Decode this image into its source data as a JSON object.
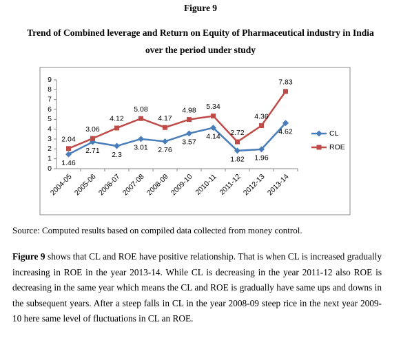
{
  "figure_label": "Figure 9",
  "title_lines": [
    "Trend of Combined leverage and Return on Equity of Pharmaceutical industry in India",
    "over the period under study"
  ],
  "chart_data": {
    "type": "line",
    "categories": [
      "2004-05",
      "2005-06",
      "2006-07",
      "2007-08",
      "2008-09",
      "2009-10",
      "2010-11",
      "2011-12",
      "2012-13",
      "2013-14"
    ],
    "series": [
      {
        "name": "CL",
        "color": "#4a7ebb",
        "marker": "diamond",
        "values": [
          1.46,
          2.71,
          2.3,
          3.01,
          2.76,
          3.57,
          4.14,
          1.82,
          1.96,
          4.62
        ]
      },
      {
        "name": "ROE",
        "color": "#be4b48",
        "marker": "square",
        "values": [
          2.04,
          3.06,
          4.12,
          5.08,
          4.17,
          4.98,
          5.34,
          2.72,
          4.36,
          7.83
        ]
      }
    ],
    "ylim": [
      0,
      9
    ],
    "yticks": [
      0,
      1,
      2,
      3,
      4,
      5,
      6,
      7,
      8,
      9
    ],
    "grid": false,
    "legend": "right"
  },
  "source": "Source: Computed results based on compiled data collected from money control.",
  "paragraph": {
    "lead": "Figure 9",
    "text": " shows that CL and ROE have positive relationship. That is when CL is increased gradually increasing in ROE in the year 2013-14. While CL is decreasing in the year 2011-12 also ROE is decreasing in the same year which means the CL and ROE is gradually have same ups and downs in the subsequent years. After a steep falls in CL in the year 2008-09 steep rice in the next year 2009-10 here same level of fluctuations in CL an ROE."
  }
}
